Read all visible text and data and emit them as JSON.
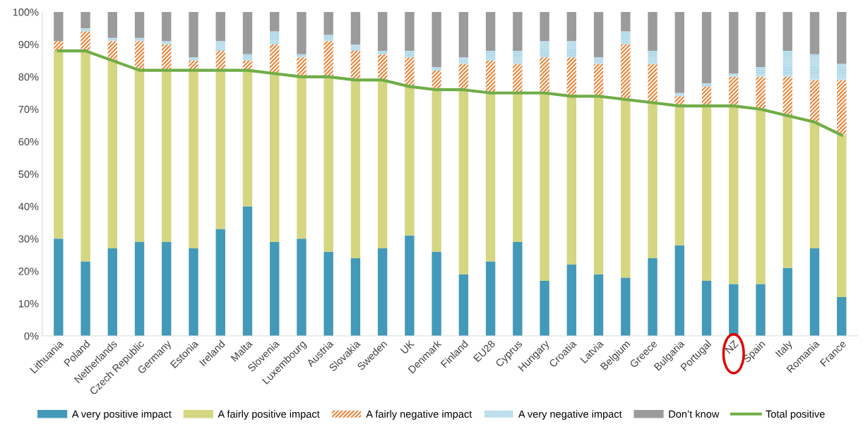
{
  "chart_data": {
    "type": "bar",
    "stacked": true,
    "categories": [
      "Lithuania",
      "Poland",
      "Netherlands",
      "Czech Republic",
      "Germany",
      "Estonia",
      "Ireland",
      "Malta",
      "Slovenia",
      "Luxembourg",
      "Austria",
      "Slovakia",
      "Sweden",
      "UK",
      "Denmark",
      "Finland",
      "EU28",
      "Cyprus",
      "Hungary",
      "Croatia",
      "Latvia",
      "Belgium",
      "Greece",
      "Bulgaria",
      "Portugal",
      "NZ",
      "Spain",
      "Italy",
      "Romania",
      "France"
    ],
    "series": [
      {
        "name": "A very positive impact",
        "color": "#4399b8",
        "values": [
          30,
          23,
          27,
          29,
          29,
          27,
          33,
          40,
          29,
          30,
          26,
          24,
          27,
          31,
          26,
          19,
          23,
          29,
          17,
          22,
          19,
          18,
          24,
          28,
          17,
          16,
          16,
          21,
          27,
          12
        ]
      },
      {
        "name": "A fairly positive impact",
        "color": "#d4d681",
        "values": [
          58,
          65,
          58,
          53,
          53,
          55,
          49,
          42,
          52,
          50,
          54,
          55,
          52,
          46,
          50,
          57,
          52,
          46,
          58,
          52,
          55,
          55,
          48,
          43,
          54,
          55,
          54,
          47,
          39,
          50
        ]
      },
      {
        "name": "A fairly negative impact",
        "color": "#e8853a",
        "values": [
          3,
          6,
          6,
          9,
          8,
          3,
          6,
          3,
          9,
          6,
          11,
          9,
          8,
          9,
          6,
          8,
          10,
          9,
          11,
          12,
          10,
          17,
          12,
          3,
          6,
          9,
          10,
          12,
          13,
          17
        ]
      },
      {
        "name": "A very negative impact",
        "color": "#6fb9d6",
        "values": [
          0,
          1,
          1,
          1,
          1,
          1,
          3,
          2,
          4,
          1,
          2,
          2,
          1,
          2,
          1,
          2,
          3,
          4,
          5,
          5,
          2,
          4,
          4,
          1,
          1,
          1,
          3,
          8,
          8,
          5
        ]
      },
      {
        "name": "Don’t know",
        "color": "#9b9b9b",
        "values": [
          9,
          5,
          8,
          8,
          9,
          14,
          9,
          13,
          6,
          13,
          7,
          10,
          12,
          12,
          17,
          14,
          12,
          12,
          9,
          9,
          14,
          6,
          12,
          25,
          22,
          19,
          17,
          12,
          13,
          16
        ]
      },
      {
        "name": "Total positive",
        "type": "line",
        "color": "#70ad47",
        "values": [
          88,
          88,
          85,
          82,
          82,
          82,
          82,
          82,
          81,
          80,
          80,
          79,
          79,
          77,
          76,
          76,
          75,
          75,
          75,
          74,
          74,
          73,
          72,
          71,
          71,
          71,
          70,
          68,
          66,
          62
        ]
      }
    ],
    "ylim": [
      0,
      100
    ],
    "yticks": [
      {
        "value": 0,
        "label": "0%"
      },
      {
        "value": 10,
        "label": "10%"
      },
      {
        "value": 20,
        "label": "20%"
      },
      {
        "value": 30,
        "label": "30%"
      },
      {
        "value": 40,
        "label": "40%"
      },
      {
        "value": 50,
        "label": "50%"
      },
      {
        "value": 60,
        "label": "60%"
      },
      {
        "value": 70,
        "label": "70%"
      },
      {
        "value": 80,
        "label": "80%"
      },
      {
        "value": 90,
        "label": "90%"
      },
      {
        "value": 100,
        "label": "100%"
      }
    ],
    "legend": "bottom",
    "grid": false
  }
}
